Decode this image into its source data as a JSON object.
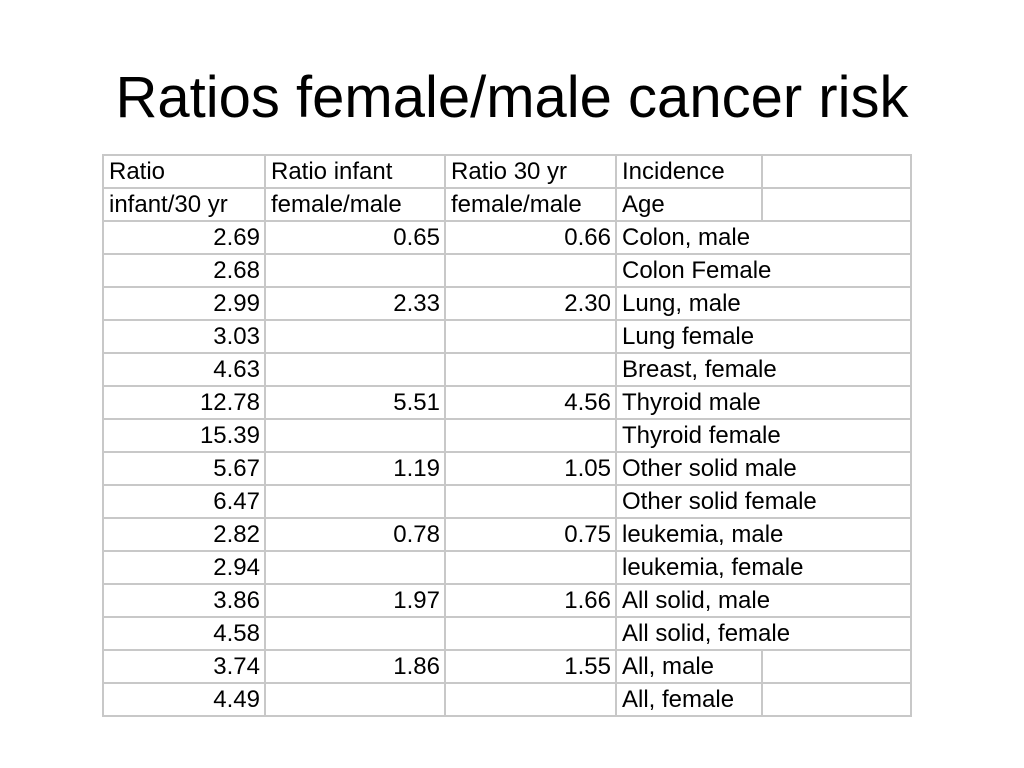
{
  "title": "Ratios female/male cancer risk",
  "header_rows": [
    [
      "Ratio",
      "Ratio infant",
      "Ratio 30 yr",
      "Incidence",
      ""
    ],
    [
      "infant/30 yr",
      "female/male",
      "female/male",
      "Age",
      ""
    ]
  ],
  "rows": [
    {
      "ratio_infant_30": "2.69",
      "infant_fm": "0.65",
      "yr30_fm": "0.66",
      "label": "Colon, male"
    },
    {
      "ratio_infant_30": "2.68",
      "infant_fm": "",
      "yr30_fm": "",
      "label": "Colon Female"
    },
    {
      "ratio_infant_30": "2.99",
      "infant_fm": "2.33",
      "yr30_fm": "2.30",
      "label": "Lung, male"
    },
    {
      "ratio_infant_30": "3.03",
      "infant_fm": "",
      "yr30_fm": "",
      "label": "Lung female"
    },
    {
      "ratio_infant_30": "4.63",
      "infant_fm": "",
      "yr30_fm": "",
      "label": "Breast, female"
    },
    {
      "ratio_infant_30": "12.78",
      "infant_fm": "5.51",
      "yr30_fm": "4.56",
      "label": "Thyroid male"
    },
    {
      "ratio_infant_30": "15.39",
      "infant_fm": "",
      "yr30_fm": "",
      "label": "Thyroid female"
    },
    {
      "ratio_infant_30": "5.67",
      "infant_fm": "1.19",
      "yr30_fm": "1.05",
      "label": "Other solid male"
    },
    {
      "ratio_infant_30": "6.47",
      "infant_fm": "",
      "yr30_fm": "",
      "label": "Other solid female"
    },
    {
      "ratio_infant_30": "2.82",
      "infant_fm": "0.78",
      "yr30_fm": "0.75",
      "label": "leukemia, male"
    },
    {
      "ratio_infant_30": "2.94",
      "infant_fm": "",
      "yr30_fm": "",
      "label": "leukemia, female"
    },
    {
      "ratio_infant_30": "3.86",
      "infant_fm": "1.97",
      "yr30_fm": "1.66",
      "label": "All solid, male"
    },
    {
      "ratio_infant_30": "4.58",
      "infant_fm": "",
      "yr30_fm": "",
      "label": "All solid, female"
    },
    {
      "ratio_infant_30": "3.74",
      "infant_fm": "1.86",
      "yr30_fm": "1.55",
      "label": "All, male"
    },
    {
      "ratio_infant_30": "4.49",
      "infant_fm": "",
      "yr30_fm": "",
      "label": "All, female"
    }
  ],
  "border_color": "#c8c8c8"
}
